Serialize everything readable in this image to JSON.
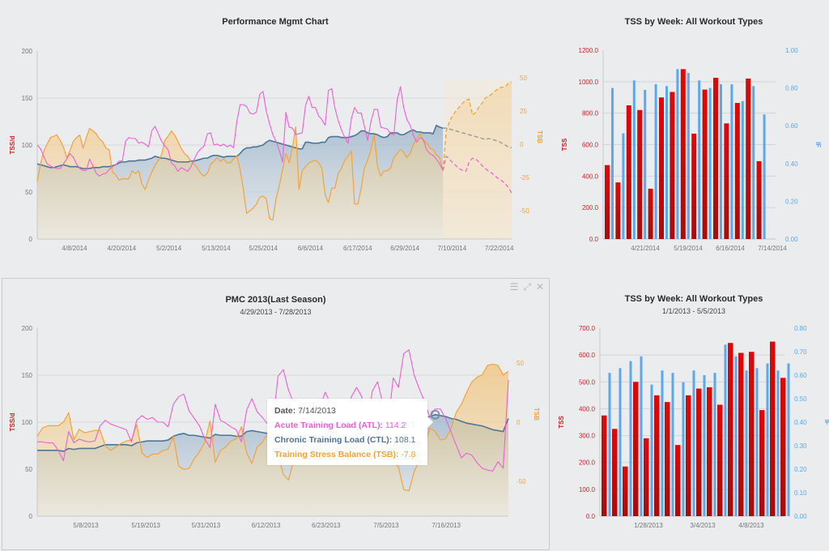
{
  "panels": {
    "pmc_current": {
      "title": "Performance Mgmt Chart",
      "left_axis_title": "TSS/d",
      "right_axis_title": "TSB"
    },
    "tss_week_current": {
      "title": "TSS by Week: All Workout Types",
      "left_axis_title": "TSS",
      "right_axis_title": "IF"
    },
    "pmc_last_season": {
      "title": "PMC 2013(Last Season)",
      "subtitle": "4/29/2013 - 7/28/2013",
      "left_axis_title": "TSS/d",
      "right_axis_title": "TSB",
      "icons": [
        "menu-icon",
        "expand-icon",
        "close-icon"
      ],
      "tooltip": {
        "date_label": "Date:",
        "date_value": "7/14/2013",
        "atl_label": "Acute Training Load (ATL):",
        "atl_value": "114.2",
        "ctl_label": "Chronic Training Load (CTL):",
        "ctl_value": "108.1",
        "tsb_label": "Training Stress Balance (TSB):",
        "tsb_value": "-7.8"
      }
    },
    "tss_week_2013": {
      "title": "TSS by Week: All Workout Types",
      "subtitle": "1/1/2013 - 5/5/2013",
      "left_axis_title": "TSS",
      "right_axis_title": "IF"
    }
  },
  "colors": {
    "atl": "#ee5fd6",
    "ctl": "#4e7596",
    "tsb": "#f2a33a",
    "tss_bar": "#d10c0c",
    "if_bar": "#5aa8f0",
    "left_axis_red": "#c8262c"
  },
  "chart_data": [
    {
      "id": "pmc_current",
      "type": "line",
      "title": "Performance Mgmt Chart",
      "xlabel": "",
      "ylabel": "TSS/d",
      "y2label": "TSB",
      "ylim": [
        0,
        200
      ],
      "yticks": [
        "0",
        "50",
        "100",
        "150",
        "200"
      ],
      "y2lim": [
        -73,
        72
      ],
      "y2ticks": [
        "-50",
        "-25",
        "0",
        "25",
        "50"
      ],
      "xticks": [
        "4/8/2014",
        "4/20/2014",
        "5/2/2014",
        "5/13/2014",
        "5/25/2014",
        "6/6/2014",
        "6/17/2014",
        "6/29/2014",
        "7/10/2014",
        "7/22/2014"
      ],
      "x_points": 125,
      "forecast_start_index": 101,
      "series": [
        {
          "name": "Acute Training Load (ATL)",
          "axis": "left",
          "values": [
            100,
            96,
            88,
            80,
            78,
            76,
            75,
            75,
            80,
            85,
            91,
            87,
            80,
            75,
            73,
            73,
            85,
            78,
            70,
            67,
            69,
            70,
            74,
            77,
            79,
            83,
            83,
            104,
            108,
            107,
            107,
            102,
            103,
            101,
            98,
            115,
            120,
            112,
            104,
            99,
            95,
            81,
            78,
            72,
            76,
            74,
            72,
            77,
            85,
            92,
            96,
            99,
            112,
            113,
            100,
            101,
            99,
            101,
            98,
            100,
            97,
            125,
            143,
            143,
            141,
            134,
            133,
            135,
            154,
            157,
            136,
            123,
            111,
            104,
            94,
            82,
            135,
            119,
            118,
            111,
            112,
            113,
            142,
            152,
            140,
            140,
            131,
            127,
            121,
            158,
            160,
            139,
            126,
            116,
            108,
            102,
            128,
            140,
            134,
            134,
            120,
            105,
            125,
            138,
            138,
            119,
            118,
            117,
            112,
            111,
            148,
            162,
            140,
            127,
            121,
            110,
            103,
            108,
            106,
            95,
            91,
            89,
            85,
            80,
            73
          ],
          "forecast_values": [
            88,
            85,
            81,
            78,
            75,
            73,
            72,
            82,
            86,
            85,
            82,
            78,
            75,
            72,
            70,
            67,
            64,
            62,
            59,
            55,
            49
          ]
        },
        {
          "name": "Chronic Training Load (CTL)",
          "axis": "left",
          "values": [
            80,
            79,
            78,
            77,
            76,
            76,
            77,
            78,
            79,
            78,
            77,
            77,
            77,
            76,
            75,
            75,
            75,
            76,
            76,
            76,
            77,
            77,
            77,
            78,
            79,
            81,
            82,
            82,
            83,
            83,
            83,
            84,
            84,
            84,
            85,
            86,
            88,
            87,
            86,
            86,
            85,
            84,
            83,
            82,
            82,
            82,
            82,
            83,
            83,
            84,
            85,
            86,
            86,
            88,
            89,
            89,
            88,
            87,
            88,
            88,
            88,
            88,
            91,
            95,
            97,
            97,
            98,
            98,
            99,
            100,
            103,
            105,
            104,
            103,
            102,
            101,
            100,
            99,
            98,
            97,
            96,
            96,
            103,
            103,
            102,
            102,
            102,
            103,
            103,
            108,
            109,
            109,
            109,
            108,
            108,
            108,
            109,
            110,
            112,
            115,
            115,
            113,
            112,
            112,
            111,
            109,
            108,
            109,
            113,
            113,
            113,
            111,
            111,
            113,
            115,
            116,
            114,
            114,
            113,
            113,
            113,
            112,
            121,
            119,
            118
          ],
          "forecast_values": [
            118,
            117,
            116,
            115,
            114,
            113,
            112,
            111,
            110,
            109,
            108,
            107,
            106,
            107,
            106,
            105,
            104,
            102,
            100,
            98,
            97
          ]
        },
        {
          "name": "Training Stress Balance (TSB)",
          "axis": "right",
          "values": [
            -28,
            -15,
            -5,
            0,
            5,
            6,
            7,
            3,
            -2,
            -10,
            -5,
            2,
            5,
            7,
            -3,
            5,
            12,
            10,
            8,
            4,
            2,
            -3,
            -4,
            -21,
            -23,
            -27,
            -26,
            -26,
            -26,
            -20,
            -22,
            -20,
            -30,
            -34,
            -27,
            -21,
            -16,
            -12,
            -8,
            3,
            6,
            10,
            7,
            2,
            -3,
            -7,
            -9,
            -13,
            -15,
            -18,
            -22,
            -24,
            -22,
            -15,
            -13,
            -10,
            -13,
            -11,
            -14,
            -14,
            -11,
            -9,
            -19,
            -34,
            -52,
            -50,
            -48,
            -45,
            -40,
            -39,
            -41,
            -56,
            -57,
            -41,
            -31,
            -19,
            -7,
            -14,
            -3,
            13,
            -34,
            -20,
            -17,
            -14,
            -13,
            -12,
            -14,
            -18,
            -38,
            -44,
            -33,
            -33,
            -22,
            -18,
            -12,
            -9,
            -5,
            -45,
            -45,
            -33,
            -18,
            -12,
            -4,
            7,
            -17,
            -24,
            -20,
            -20,
            -18,
            -10,
            -7,
            -4,
            -6,
            -10,
            -7,
            0,
            4,
            8,
            3,
            1,
            -3,
            -4,
            -8,
            -10,
            -20
          ],
          "forecast_values": [
            10,
            17,
            22,
            25,
            28,
            31,
            33,
            34,
            22,
            24,
            28,
            31,
            35,
            36,
            38,
            40,
            42,
            43,
            43,
            46,
            47
          ]
        }
      ]
    },
    {
      "id": "tss_week_current",
      "type": "bar",
      "title": "TSS by Week: All Workout Types",
      "xlabel": "",
      "ylabel": "TSS",
      "y2label": "IF",
      "ylim": [
        0,
        1200
      ],
      "yticks": [
        "0.0",
        "200.0",
        "400.0",
        "600.0",
        "800.0",
        "1000.0",
        "1200.0"
      ],
      "y2lim": [
        0,
        1.0
      ],
      "y2ticks": [
        "0.00",
        "0.20",
        "0.40",
        "0.60",
        "0.80",
        "1.00"
      ],
      "xticks": [
        "4/21/2014",
        "5/19/2014",
        "6/16/2014",
        "7/14/2014"
      ],
      "series": [
        {
          "name": "TSS",
          "axis": "left",
          "values": [
            470,
            360,
            850,
            820,
            320,
            900,
            935,
            1080,
            670,
            950,
            1025,
            735,
            865,
            1020,
            495
          ]
        },
        {
          "name": "IF",
          "axis": "right",
          "values": [
            0.8,
            0.56,
            0.84,
            0.79,
            0.82,
            0.81,
            0.9,
            0.88,
            0.84,
            0.8,
            0.82,
            0.82,
            0.73,
            0.81,
            0.66
          ]
        }
      ]
    },
    {
      "id": "pmc_last_season",
      "type": "line",
      "title": "PMC 2013(Last Season)",
      "subtitle": "4/29/2013 - 7/28/2013",
      "xlabel": "",
      "ylabel": "TSS/d",
      "y2label": "TSB",
      "ylim": [
        0,
        200
      ],
      "yticks": [
        "0",
        "50",
        "100",
        "150",
        "200"
      ],
      "y2lim": [
        -80,
        80
      ],
      "y2ticks": [
        "-50",
        "0",
        "50"
      ],
      "xticks": [
        "5/8/2013",
        "5/19/2013",
        "5/31/2013",
        "6/12/2013",
        "6/23/2013",
        "7/5/2013",
        "7/16/2013"
      ],
      "x_points": 91,
      "hover_index": 76,
      "series": [
        {
          "name": "Acute Training Load (ATL)",
          "axis": "left",
          "values": [
            79,
            79,
            78,
            78,
            70,
            59,
            90,
            78,
            82,
            80,
            79,
            80,
            96,
            102,
            98,
            96,
            94,
            92,
            79,
            102,
            107,
            103,
            105,
            100,
            100,
            95,
            119,
            127,
            130,
            112,
            104,
            96,
            82,
            73,
            119,
            102,
            99,
            95,
            92,
            79,
            113,
            125,
            111,
            105,
            98,
            99,
            149,
            156,
            134,
            120,
            105,
            125,
            118,
            113,
            115,
            132,
            120,
            114,
            108,
            101,
            127,
            137,
            127,
            95,
            133,
            143,
            120,
            98,
            147,
            137,
            173,
            177,
            150,
            135,
            122,
            105,
            114,
            114,
            104,
            90,
            76,
            62,
            67,
            65,
            57,
            51,
            49,
            48,
            58,
            51,
            145
          ]
        },
        {
          "name": "Chronic Training Load (CTL)",
          "axis": "left",
          "values": [
            70,
            70,
            70,
            70,
            70,
            69,
            72,
            71,
            72,
            72,
            72,
            72,
            74,
            76,
            76,
            76,
            76,
            76,
            75,
            78,
            79,
            80,
            80,
            80,
            80,
            81,
            85,
            87,
            88,
            86,
            86,
            85,
            84,
            83,
            87,
            86,
            86,
            86,
            85,
            85,
            90,
            91,
            90,
            89,
            88,
            88,
            89,
            90,
            90,
            89,
            88,
            89,
            89,
            88,
            89,
            89,
            89,
            89,
            89,
            89,
            90,
            91,
            92,
            91,
            92,
            93,
            93,
            93,
            95,
            96,
            99,
            101,
            102,
            103,
            104,
            106,
            108,
            107,
            106,
            104,
            103,
            101,
            99,
            98,
            97,
            96,
            94,
            92,
            91,
            90,
            104
          ]
        },
        {
          "name": "Training Stress Balance (TSB)",
          "axis": "right",
          "values": [
            -12,
            -5,
            -3,
            -3,
            -3,
            0,
            8,
            -15,
            -6,
            -9,
            -8,
            -7,
            -7,
            -20,
            -24,
            -21,
            -18,
            -16,
            -15,
            -2,
            -26,
            -30,
            -27,
            -27,
            -24,
            -23,
            -12,
            -37,
            -40,
            -39,
            -31,
            -25,
            -17,
            1,
            -34,
            -24,
            -21,
            -16,
            -14,
            -4,
            -26,
            -35,
            -21,
            -17,
            -10,
            -10,
            -28,
            -44,
            -49,
            -32,
            -15,
            -10,
            -12,
            -12,
            -11,
            -5,
            -8,
            -8,
            -8,
            -8,
            -20,
            -20,
            -7,
            -20,
            -15,
            -10,
            -4,
            -16,
            -33,
            -38,
            -57,
            -58,
            -42,
            -32,
            -20,
            -5,
            -8,
            -15,
            -14,
            -6,
            8,
            15,
            25,
            34,
            38,
            40,
            48,
            49,
            48,
            40,
            43
          ]
        }
      ]
    },
    {
      "id": "tss_week_2013",
      "type": "bar",
      "title": "TSS by Week: All Workout Types",
      "subtitle": "1/1/2013 - 5/5/2013",
      "xlabel": "",
      "ylabel": "TSS",
      "y2label": "IF",
      "ylim": [
        0,
        700
      ],
      "yticks": [
        "0.0",
        "100.0",
        "200.0",
        "300.0",
        "400.0",
        "500.0",
        "600.0",
        "700.0"
      ],
      "y2lim": [
        0,
        0.8
      ],
      "y2ticks": [
        "0.00",
        "0.10",
        "0.20",
        "0.30",
        "0.40",
        "0.50",
        "0.60",
        "0.70",
        "0.80"
      ],
      "xticks": [
        "1/28/2013",
        "3/4/2013",
        "4/8/2013"
      ],
      "series": [
        {
          "name": "TSS",
          "axis": "left",
          "values": [
            375,
            325,
            185,
            500,
            290,
            450,
            425,
            265,
            450,
            475,
            480,
            415,
            645,
            608,
            612,
            395,
            650,
            515
          ]
        },
        {
          "name": "IF",
          "axis": "right",
          "values": [
            0.61,
            0.63,
            0.66,
            0.68,
            0.56,
            0.62,
            0.61,
            0.57,
            0.62,
            0.6,
            0.61,
            0.73,
            0.68,
            0.62,
            0.63,
            0.65,
            0.62,
            0.65
          ]
        }
      ]
    }
  ]
}
